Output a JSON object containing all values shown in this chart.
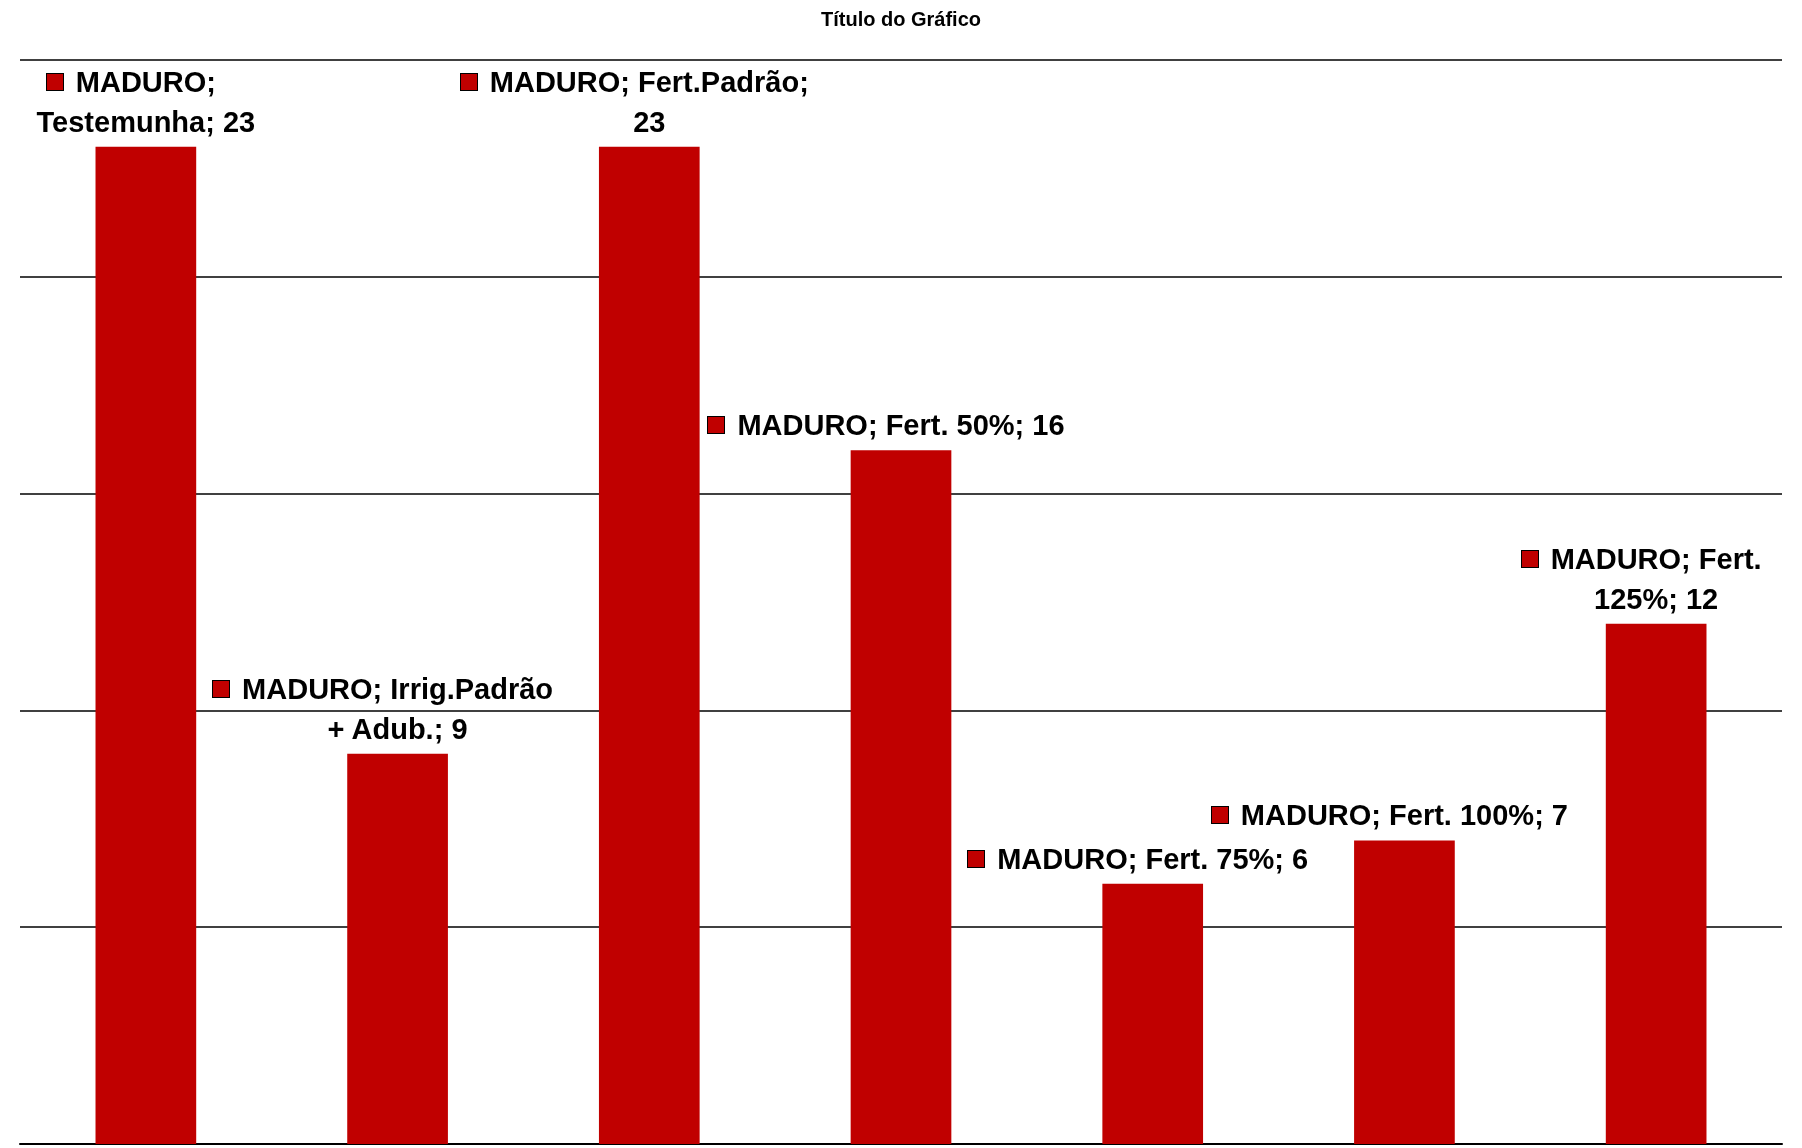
{
  "chart_data": {
    "type": "bar",
    "title": "Título do Gráfico",
    "categories": [
      null,
      null,
      null,
      null,
      null,
      null,
      null
    ],
    "series": [
      {
        "color": "#c00000",
        "values": [
          23,
          9,
          23,
          16,
          6,
          7,
          12
        ],
        "value_labels": [
          "MADURO; Testemunha; 23",
          "MADURO; Irrig.Padrão + Adub.; 9",
          "MADURO; Fert.Padrão; 23",
          "MADURO; Fert. 50%; 16",
          "MADURO; Fert. 75%; 6",
          "MADURO; Fert. 100%; 7",
          "MADURO; Fert. 125%; 12"
        ]
      }
    ],
    "ylim": [
      0,
      25
    ],
    "yticks": [
      {
        "value": 0,
        "label": null
      },
      {
        "value": 5,
        "label": null
      },
      {
        "value": 10,
        "label": null
      },
      {
        "value": 15,
        "label": null
      },
      {
        "value": 20,
        "label": null
      },
      {
        "value": 25,
        "label": null
      }
    ],
    "grid": "y",
    "tick_labels": false
  }
}
